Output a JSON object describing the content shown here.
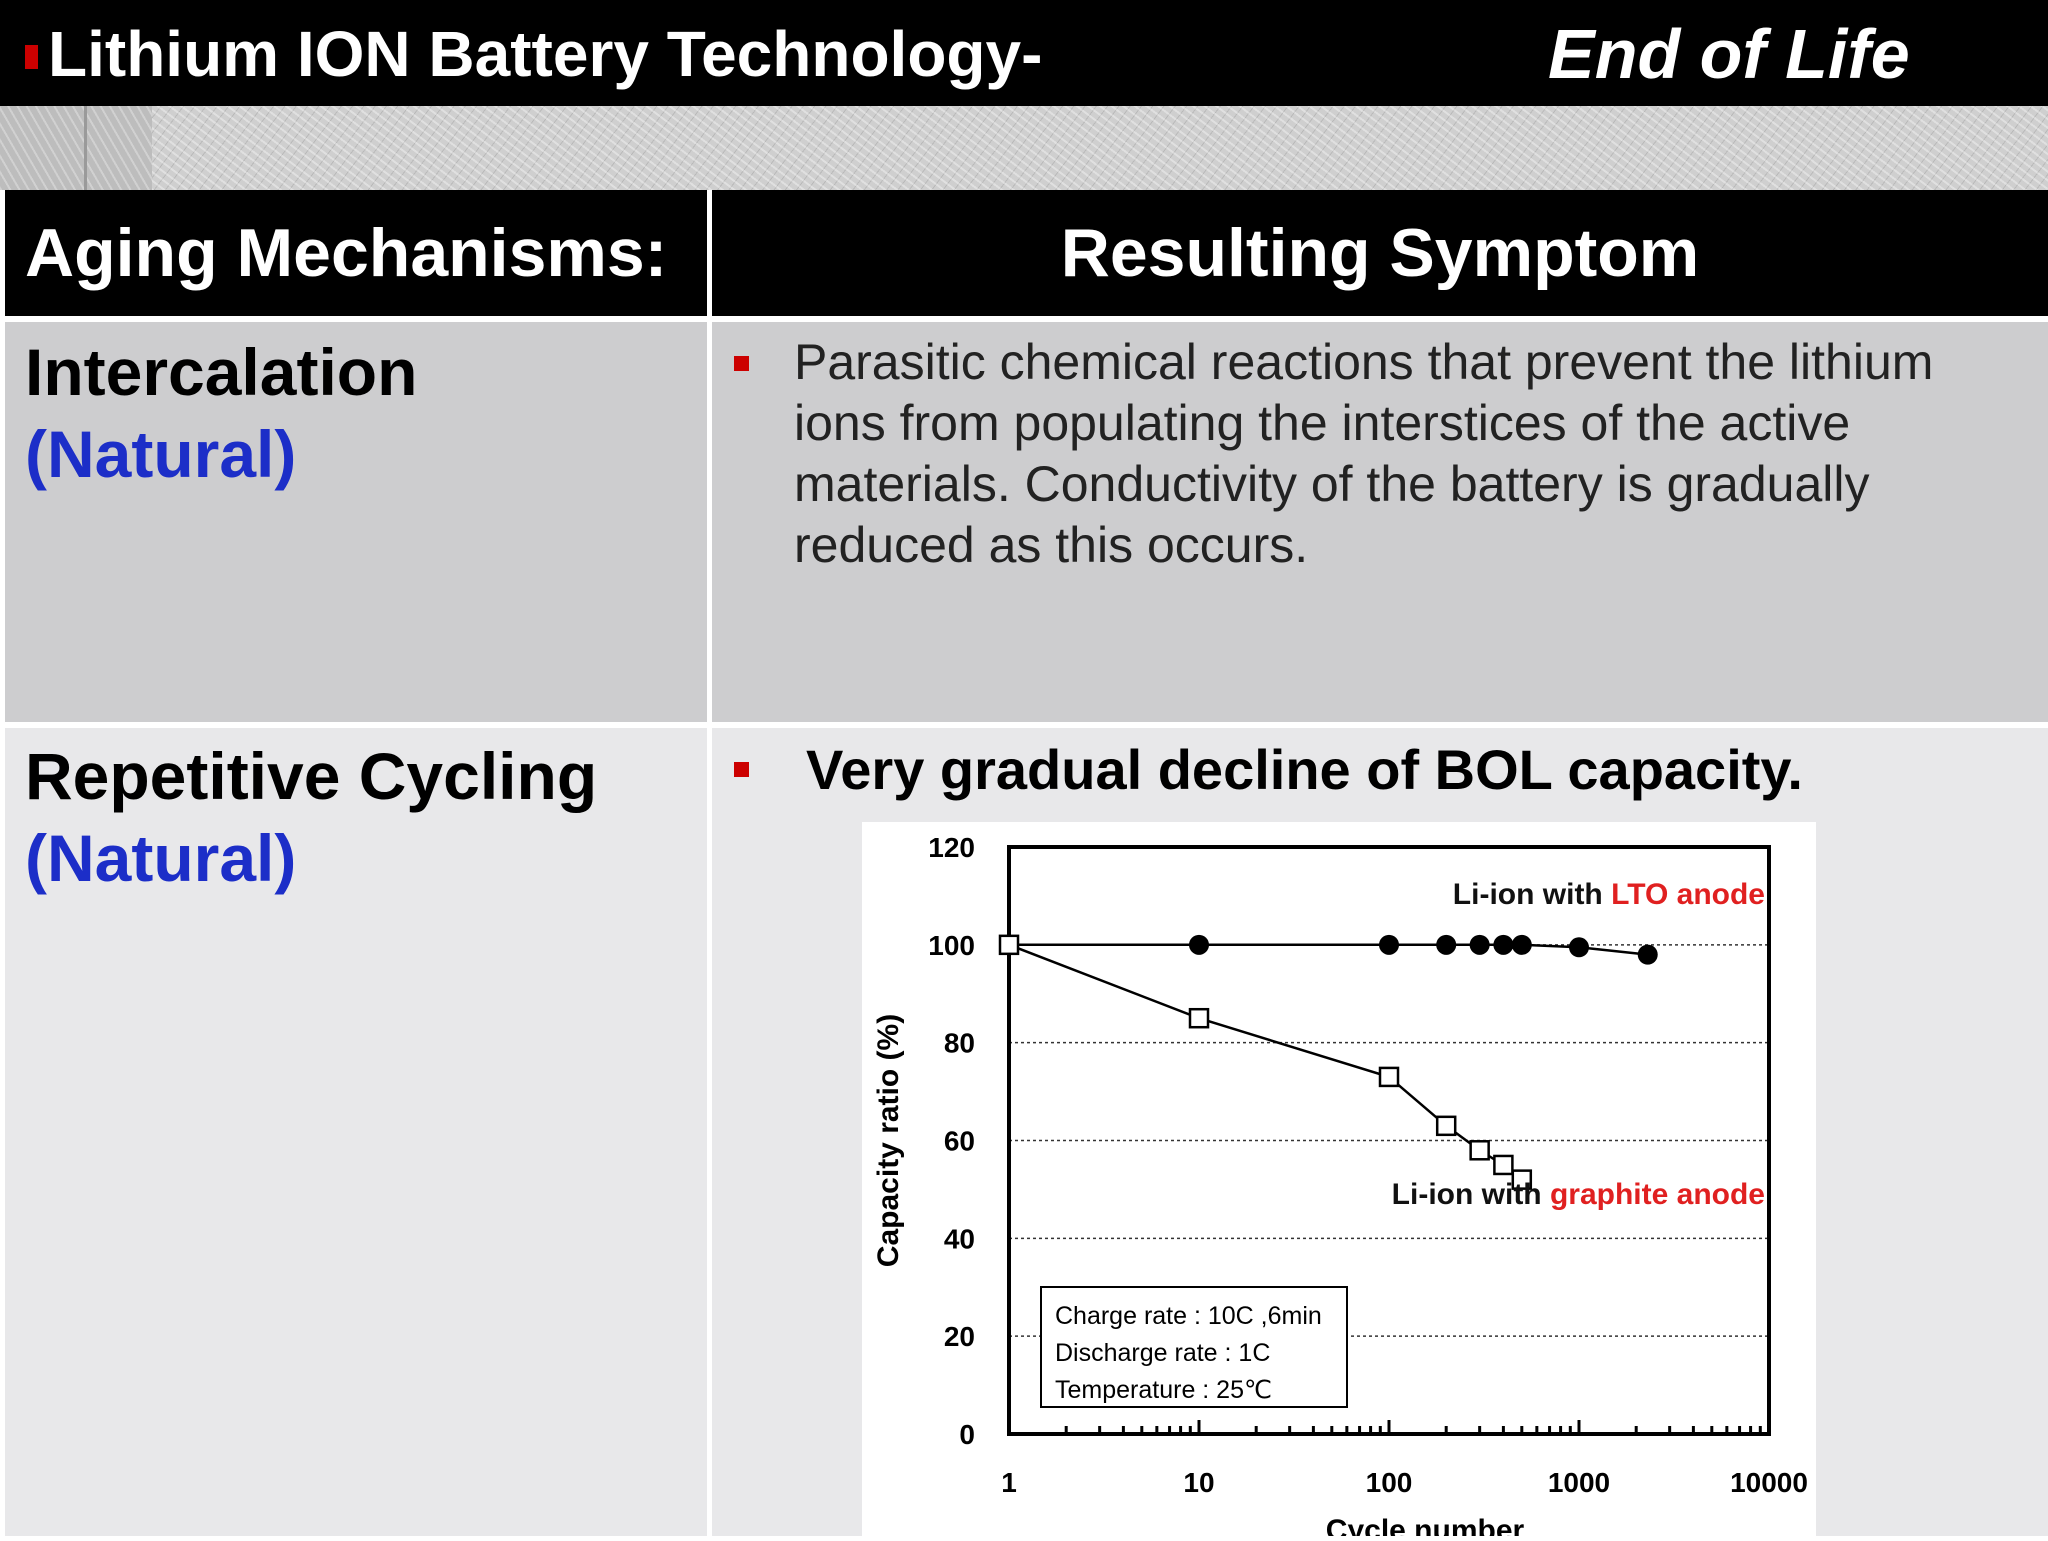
{
  "header": {
    "title": "Lithium ION Battery Technology-",
    "subtitle_right": "End of Life"
  },
  "table": {
    "col_left_header": "Aging Mechanisms:",
    "col_right_header": "Resulting Symptom",
    "rows": [
      {
        "mechanism": "Intercalation",
        "type": "(Natural)",
        "symptom": "Parasitic chemical reactions that prevent the lithium ions from populating the interstices of the active materials.  Conductivity of the battery is gradually reduced as this occurs."
      },
      {
        "mechanism": "Repetitive Cycling",
        "type": "(Natural)",
        "symptom": "Very gradual decline of BOL capacity."
      }
    ]
  },
  "colors": {
    "accent_red": "#cc0000",
    "natural_blue": "#1c2ec8",
    "row1_bg": "#cdcdcf",
    "row2_bg": "#e8e8ea"
  },
  "chart_data": {
    "type": "scatter",
    "xlabel": "Cycle number",
    "ylabel": "Capacity ratio (%)",
    "x_scale": "log",
    "xlim": [
      1,
      10000
    ],
    "ylim": [
      0,
      120
    ],
    "xticks": [
      1,
      10,
      100,
      1000,
      10000
    ],
    "yticks": [
      0,
      20,
      40,
      60,
      80,
      100,
      120
    ],
    "grid": "dotted horizontal",
    "series": [
      {
        "name_prefix": "Li-ion with ",
        "name_highlight": "LTO anode",
        "marker": "filled-circle",
        "x": [
          1,
          10,
          100,
          200,
          300,
          400,
          500,
          1000,
          2300
        ],
        "y": [
          100,
          100,
          100,
          100,
          100,
          100,
          100,
          99.5,
          98
        ]
      },
      {
        "name_prefix": "Li-ion with ",
        "name_highlight": "graphite anode",
        "marker": "open-square",
        "x": [
          1,
          10,
          100,
          200,
          300,
          400,
          500
        ],
        "y": [
          100,
          85,
          73,
          63,
          58,
          55,
          52
        ]
      }
    ],
    "annotation": [
      "Charge rate : 10C ,6min",
      "Discharge rate : 1C",
      "Temperature :   25℃"
    ]
  }
}
